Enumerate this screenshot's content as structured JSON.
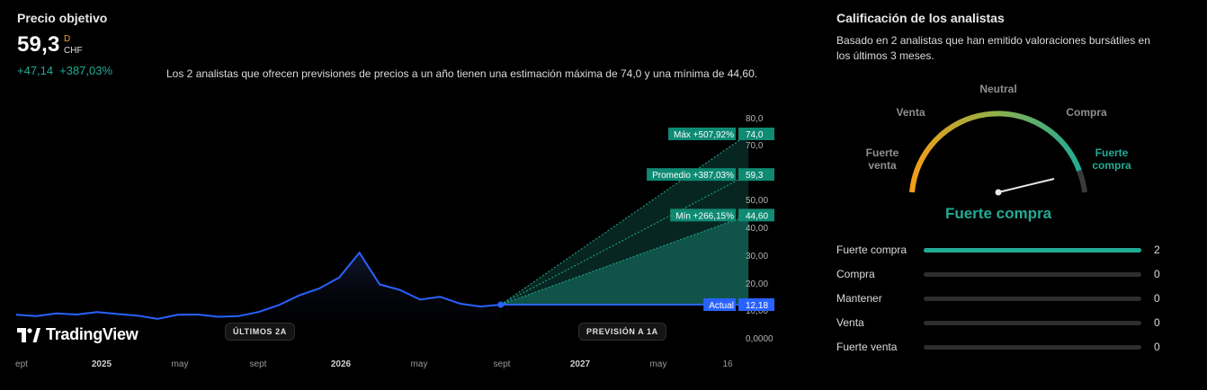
{
  "header": {
    "title": "Precio objetivo",
    "price": "59,3",
    "price_badge": "D",
    "currency": "CHF",
    "change_abs": "+47,14",
    "change_pct": "+387,03%"
  },
  "description": "Los 2 analistas que ofrecen previsiones de precios a un año tienen una estimación máxima de 74,0 y una mínima de 44,60.",
  "chart_data": {
    "type": "line",
    "title": "",
    "xlabel": "",
    "ylabel": "",
    "x_tick_labels": [
      "ept",
      "2025",
      "may",
      "sept",
      "2026",
      "may",
      "sept",
      "2027",
      "may",
      "16"
    ],
    "y_tick_labels": [
      "80,0",
      "70,0",
      "50,00",
      "40,00",
      "30,00",
      "20,00",
      "10,00",
      "0,0000"
    ],
    "ylim": [
      0,
      80
    ],
    "price_series": {
      "name": "",
      "x": [
        "2024-09",
        "2024-10",
        "2024-11",
        "2024-12",
        "2025-01",
        "2025-02",
        "2025-03",
        "2025-04",
        "2025-05",
        "2025-06",
        "2025-07",
        "2025-08",
        "2025-09",
        "2025-10",
        "2025-11",
        "2025-12",
        "2026-01",
        "2026-02",
        "2026-03",
        "2026-04",
        "2026-05",
        "2026-06",
        "2026-07",
        "2026-08",
        "2026-09"
      ],
      "values": [
        8.5,
        8.0,
        9.0,
        8.6,
        9.5,
        8.8,
        8.2,
        7.0,
        8.5,
        8.6,
        7.8,
        8.0,
        9.5,
        12.0,
        15.5,
        18.0,
        22.0,
        31.0,
        19.5,
        17.5,
        14.0,
        15.0,
        12.5,
        11.5,
        12.18
      ]
    },
    "forecast": {
      "from": "2026-09",
      "to": "2027-09",
      "max": {
        "label": "Máx +507,92%",
        "value": "74,0",
        "y": 74.0
      },
      "avg": {
        "label": "Promedio +387,03%",
        "value": "59,3",
        "y": 59.3
      },
      "min": {
        "label": "Mín +266,15%",
        "value": "44,60",
        "y": 44.6
      },
      "current": {
        "label": "Actual",
        "value": "12,18",
        "y": 12.18
      }
    },
    "colors": {
      "price_line": "#2962ff",
      "forecast": "#22ab94",
      "current": "#2962ff"
    }
  },
  "chart_labels": {
    "brand": "TradingView",
    "past_pill": "ÚLTIMOS 2A",
    "forecast_pill": "PREVISIÓN A 1A"
  },
  "rating": {
    "title": "Calificación de los analistas",
    "subtitle": "Basado en 2 analistas que han emitido valoraciones bursátiles en los últimos 3 meses.",
    "gauge_labels": {
      "strong_sell": "Fuerte venta",
      "sell": "Venta",
      "neutral": "Neutral",
      "buy": "Compra",
      "strong_buy": "Fuerte compra"
    },
    "result": "Fuerte compra",
    "rows": [
      {
        "label": "Fuerte compra",
        "count": "2",
        "fraction": 1
      },
      {
        "label": "Compra",
        "count": "0",
        "fraction": 0
      },
      {
        "label": "Mantener",
        "count": "0",
        "fraction": 0
      },
      {
        "label": "Venta",
        "count": "0",
        "fraction": 0
      },
      {
        "label": "Fuerte venta",
        "count": "0",
        "fraction": 0
      }
    ]
  }
}
